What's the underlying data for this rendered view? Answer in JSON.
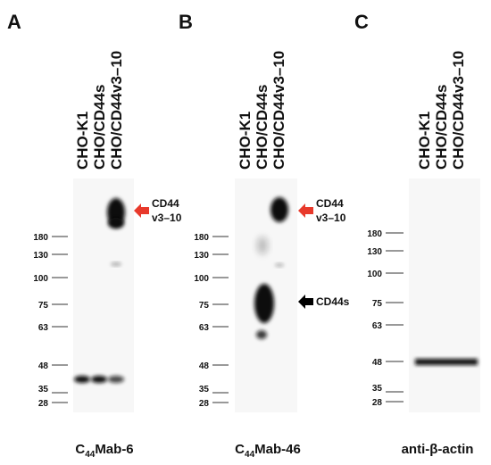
{
  "panels": [
    {
      "letter": "A",
      "lanes": [
        "CHO-K1",
        "CHO/CD44s",
        "CHO/CD44v3–10"
      ],
      "markers": [
        "180",
        "130",
        "100",
        "75",
        "63",
        "48",
        "35",
        "28"
      ],
      "annotations": [
        {
          "lines": [
            "CD44",
            "v3–10"
          ]
        }
      ],
      "caption": {
        "prefix": "C",
        "subscript": "44",
        "suffix": "Mab-6"
      }
    },
    {
      "letter": "B",
      "lanes": [
        "CHO-K1",
        "CHO/CD44s",
        "CHO/CD44v3–10"
      ],
      "markers": [
        "180",
        "130",
        "100",
        "75",
        "63",
        "48",
        "35",
        "28"
      ],
      "annotations": [
        {
          "lines": [
            "CD44",
            "v3–10"
          ]
        },
        {
          "lines": [
            "CD44s"
          ]
        }
      ],
      "caption": {
        "prefix": "C",
        "subscript": "44",
        "suffix": "Mab-46"
      }
    },
    {
      "letter": "C",
      "lanes": [
        "CHO-K1",
        "CHO/CD44s",
        "CHO/CD44v3–10"
      ],
      "markers": [
        "180",
        "130",
        "100",
        "75",
        "63",
        "48",
        "35",
        "28"
      ],
      "annotations": [],
      "caption": {
        "prefix": "anti-β-actin"
      }
    }
  ]
}
